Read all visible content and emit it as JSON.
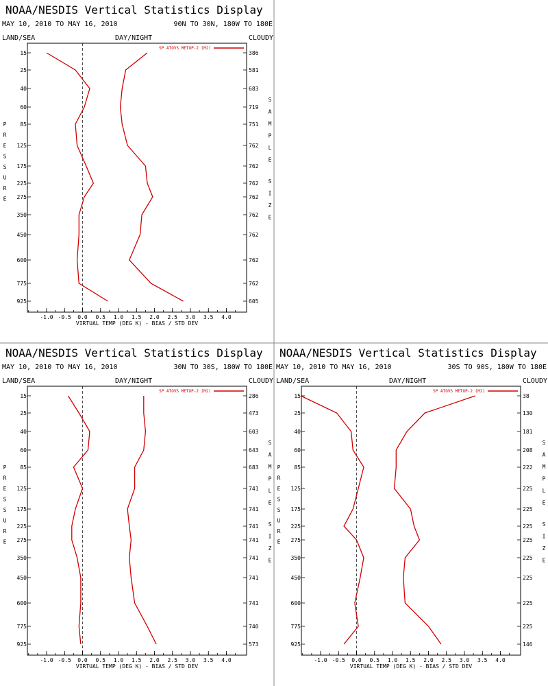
{
  "panel_title": "NOAA/NESDIS Vertical Statistics Display",
  "date_range": "MAY 10, 2010 TO MAY 16, 2010",
  "land_sea": "LAND/SEA",
  "day_night": "DAY/NIGHT",
  "cloudy": "CLOUDY",
  "pressure_label": "PRESSURE",
  "sample_size_label": "SAMPLE SIZE",
  "colors": {
    "line": "#d00000",
    "axis": "#000000",
    "divider": "#888888"
  },
  "chart_data": [
    {
      "type": "line",
      "region": "90N TO 30N, 180W TO 180E",
      "title": "NOAA/NESDIS Vertical Statistics Display",
      "xlabel": "VIRTUAL TEMP (DEG K) - BIAS / STD DEV",
      "ylabel": "PRESSURE",
      "legend": "SP ATOVS METOP-2 (M2)",
      "legend_position": "top-right",
      "xlim": [
        -1.5,
        4.25
      ],
      "x_ticks": [
        "-1.0",
        "-0.5",
        "0.0",
        "0.5",
        "1.0",
        "1.5",
        "2.0",
        "2.5",
        "3.0",
        "3.5",
        "4.0"
      ],
      "pressure_levels": [
        "15",
        "25",
        "40",
        "60",
        "85",
        "125",
        "175",
        "225",
        "275",
        "350",
        "450",
        "600",
        "775",
        "925"
      ],
      "sample_size": [
        "386",
        "581",
        "683",
        "719",
        "751",
        "762",
        "762",
        "762",
        "762",
        "762",
        "762",
        "762",
        "762",
        "605"
      ],
      "series": [
        {
          "name": "BIAS",
          "values": [
            -1.0,
            -0.2,
            0.2,
            0.05,
            -0.2,
            -0.15,
            0.1,
            0.3,
            0.05,
            -0.1,
            -0.1,
            -0.15,
            -0.1,
            0.7
          ]
        },
        {
          "name": "STD DEV",
          "values": [
            1.8,
            1.2,
            1.1,
            1.05,
            1.1,
            1.25,
            1.75,
            1.8,
            1.95,
            1.65,
            1.6,
            1.3,
            1.9,
            2.8
          ]
        }
      ]
    },
    {
      "type": "line",
      "region": "30N TO 30S, 180W TO 180E",
      "title": "NOAA/NESDIS Vertical Statistics Display",
      "xlabel": "VIRTUAL TEMP (DEG K) - BIAS / STD DEV",
      "ylabel": "PRESSURE",
      "legend": "SP ATOVS METOP-2 (M2)",
      "legend_position": "top-right",
      "xlim": [
        -1.5,
        4.25
      ],
      "x_ticks": [
        "-1.0",
        "-0.5",
        "0.0",
        "0.5",
        "1.0",
        "1.5",
        "2.0",
        "2.5",
        "3.0",
        "3.5",
        "4.0"
      ],
      "pressure_levels": [
        "15",
        "25",
        "40",
        "60",
        "85",
        "125",
        "175",
        "225",
        "275",
        "350",
        "450",
        "600",
        "775",
        "925"
      ],
      "sample_size": [
        "286",
        "473",
        "603",
        "643",
        "683",
        "741",
        "741",
        "741",
        "741",
        "741",
        "741",
        "741",
        "740",
        "573"
      ],
      "series": [
        {
          "name": "BIAS",
          "values": [
            -0.4,
            -0.1,
            0.2,
            0.15,
            -0.25,
            0.0,
            -0.2,
            -0.3,
            -0.3,
            -0.15,
            -0.05,
            -0.05,
            -0.1,
            -0.05
          ]
        },
        {
          "name": "STD DEV",
          "values": [
            1.7,
            1.7,
            1.75,
            1.7,
            1.45,
            1.45,
            1.25,
            1.3,
            1.35,
            1.3,
            1.35,
            1.45,
            1.8,
            2.05
          ]
        }
      ]
    },
    {
      "type": "line",
      "region": "30S TO 90S, 180W TO 180E",
      "title": "NOAA/NESDIS Vertical Statistics Display",
      "xlabel": "VIRTUAL TEMP (DEG K) - BIAS / STD DEV",
      "ylabel": "PRESSURE",
      "legend": "SP ATOVS METOP-2 (M2)",
      "legend_position": "top-right",
      "xlim": [
        -1.5,
        4.25
      ],
      "x_ticks": [
        "-1.0",
        "-0.5",
        "0.0",
        "0.5",
        "1.0",
        "1.5",
        "2.0",
        "2.5",
        "3.0",
        "3.5",
        "4.0"
      ],
      "pressure_levels": [
        "15",
        "25",
        "40",
        "60",
        "85",
        "125",
        "175",
        "225",
        "275",
        "350",
        "450",
        "600",
        "775",
        "925"
      ],
      "sample_size": [
        "38",
        "130",
        "181",
        "208",
        "222",
        "225",
        "225",
        "225",
        "225",
        "225",
        "225",
        "225",
        "225",
        "146"
      ],
      "series": [
        {
          "name": "BIAS",
          "values": [
            -1.55,
            -0.55,
            -0.15,
            -0.1,
            0.2,
            0.05,
            -0.1,
            -0.35,
            0.0,
            0.2,
            0.1,
            -0.05,
            0.05,
            -0.35
          ]
        },
        {
          "name": "STD DEV",
          "values": [
            3.3,
            1.9,
            1.4,
            1.1,
            1.1,
            1.05,
            1.5,
            1.6,
            1.75,
            1.35,
            1.3,
            1.35,
            2.0,
            2.35
          ]
        }
      ]
    }
  ]
}
